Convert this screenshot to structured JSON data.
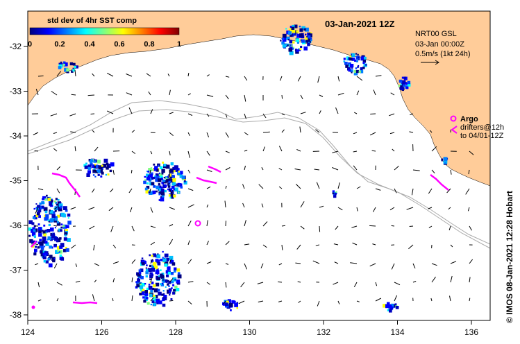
{
  "map": {
    "title": "03-Jan-2021 12Z",
    "colorbar": {
      "title": "std dev of 4hr SST comp",
      "ticks": [
        "0",
        "0.2",
        "0.4",
        "0.6",
        "0.8",
        "1"
      ],
      "colors": [
        "#00007f",
        "#0000ff",
        "#0080ff",
        "#00ffff",
        "#80ff80",
        "#ffff00",
        "#ff8000",
        "#ff0000",
        "#7f0000"
      ]
    },
    "current_info": {
      "line1": "NRT00 GSL",
      "line2": "03-Jan 00:00Z",
      "line3": "0.5m/s (1kt 24h)"
    },
    "argo": {
      "label": "Argo",
      "drifters1": "drifters@12h",
      "drifters2": "to 04/01-12Z",
      "color": "#ff00ff"
    },
    "credit": "© IMOS 08-Jan-2021 12:28 Hobart",
    "axes": {
      "x_ticks": [
        "124",
        "126",
        "128",
        "130",
        "132",
        "134",
        "136"
      ],
      "y_ticks": [
        "-32",
        "-33",
        "-34",
        "-35",
        "-36",
        "-37",
        "-38"
      ]
    },
    "land_color": "#ffcc99"
  }
}
